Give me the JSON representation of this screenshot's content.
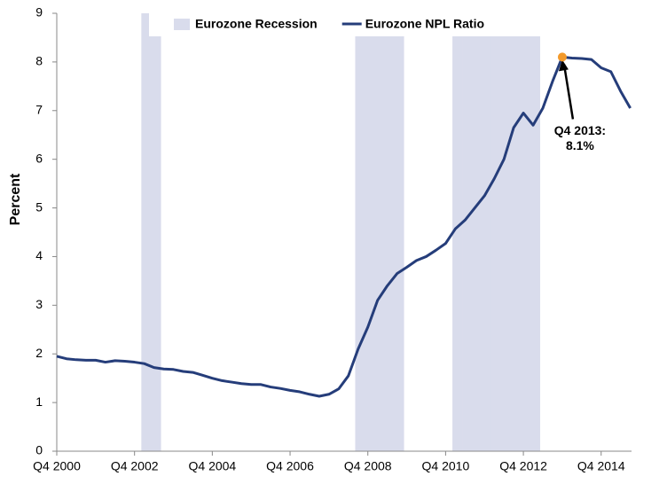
{
  "chart_data": {
    "type": "line",
    "ylabel": "Percent",
    "categories": [
      "Q4 2000",
      null,
      null,
      null,
      null,
      null,
      null,
      null,
      "Q4 2002",
      null,
      null,
      null,
      null,
      null,
      null,
      null,
      "Q4 2004",
      null,
      null,
      null,
      null,
      null,
      null,
      null,
      "Q4 2006",
      null,
      null,
      null,
      null,
      null,
      null,
      null,
      "Q4 2008",
      null,
      null,
      null,
      null,
      null,
      null,
      null,
      "Q4 2010",
      null,
      null,
      null,
      null,
      null,
      null,
      null,
      "Q4 2012",
      null,
      null,
      null,
      null,
      null,
      null,
      null,
      "Q4 2014",
      null,
      null,
      null
    ],
    "series": [
      {
        "name": "Eurozone Recession",
        "type": "bar",
        "color": "#d9dcec",
        "values": [
          null,
          null,
          null,
          null,
          null,
          null,
          null,
          null,
          null,
          9,
          9,
          null,
          null,
          null,
          null,
          null,
          null,
          null,
          null,
          null,
          null,
          null,
          null,
          null,
          null,
          null,
          null,
          null,
          null,
          null,
          null,
          9,
          9,
          9,
          9,
          9,
          null,
          null,
          null,
          null,
          null,
          9,
          9,
          9,
          9,
          9,
          9,
          9,
          9,
          9,
          null,
          null,
          null,
          null,
          null,
          null,
          null,
          null,
          null,
          null
        ]
      },
      {
        "name": "Eurozone NPL Ratio",
        "type": "line",
        "color": "#253d7a",
        "values": [
          1.95,
          1.9,
          1.88,
          1.87,
          1.87,
          1.83,
          1.86,
          1.85,
          1.83,
          1.8,
          1.72,
          1.69,
          1.68,
          1.64,
          1.62,
          1.56,
          1.5,
          1.45,
          1.42,
          1.39,
          1.37,
          1.37,
          1.32,
          1.29,
          1.25,
          1.22,
          1.17,
          1.13,
          1.17,
          1.28,
          1.55,
          2.1,
          2.55,
          3.1,
          3.4,
          3.65,
          3.78,
          3.92,
          4.0,
          4.13,
          4.27,
          4.57,
          4.75,
          5.0,
          5.25,
          5.6,
          6.0,
          6.65,
          6.95,
          6.7,
          7.05,
          7.6,
          8.1,
          8.08,
          8.07,
          8.05,
          7.88,
          7.8,
          7.4,
          7.05
        ]
      }
    ],
    "annotation": {
      "lines": [
        "Q4 2013:",
        "8.1%"
      ],
      "color": "#f39a2b"
    },
    "ylim": [
      0,
      9
    ],
    "yticks": [
      0,
      1,
      2,
      3,
      4,
      5,
      6,
      7,
      8,
      9
    ]
  }
}
